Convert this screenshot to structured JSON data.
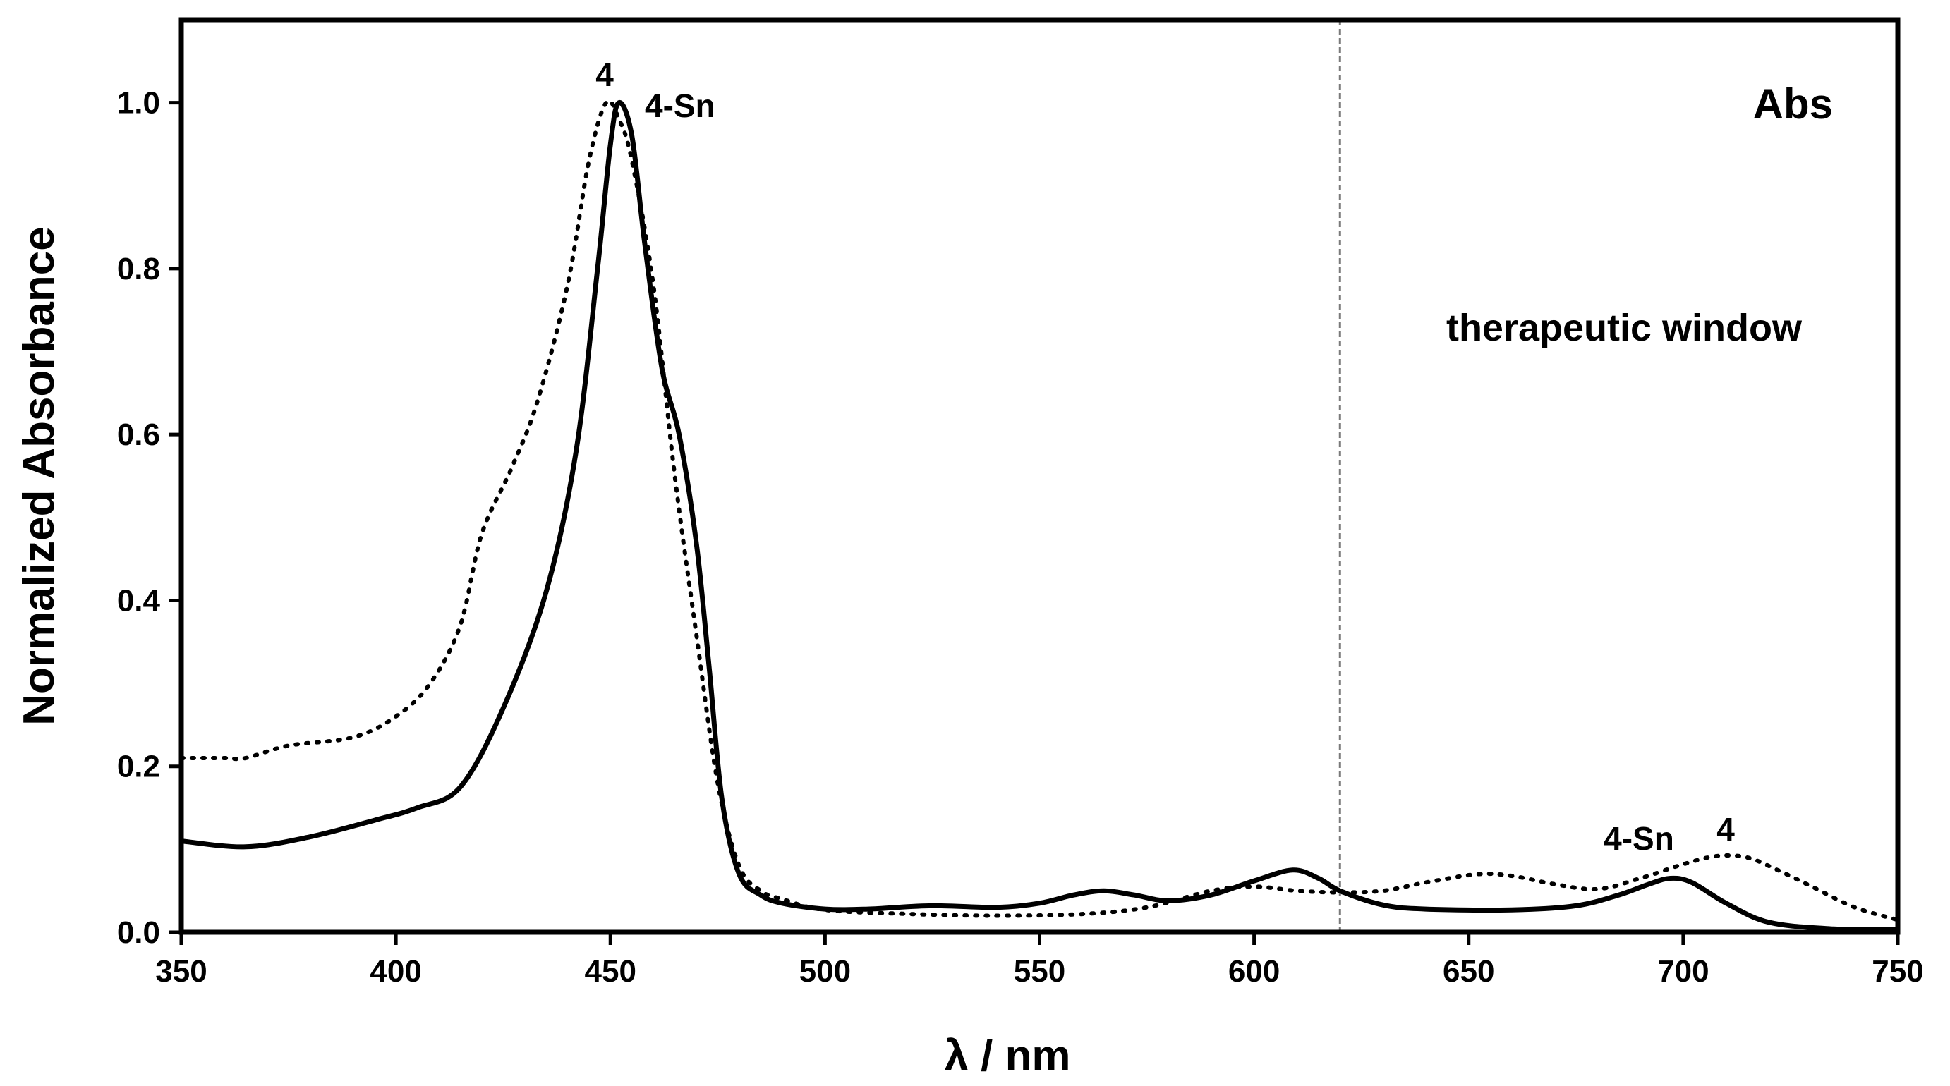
{
  "chart_data": {
    "type": "line",
    "title": "",
    "xlabel": "λ / nm",
    "ylabel": "Normalized Absorbance",
    "xlim": [
      350,
      750
    ],
    "ylim": [
      0,
      1.1
    ],
    "x_ticks": [
      350,
      400,
      450,
      500,
      550,
      600,
      650,
      700,
      750
    ],
    "x_tick_labels": [
      "350",
      "400",
      "450",
      "500",
      "550",
      "600",
      "650",
      "700",
      "750"
    ],
    "y_ticks": [
      0,
      0.2,
      0.4,
      0.6,
      0.8,
      1.0
    ],
    "y_tick_labels": [
      "0.0",
      "0.2",
      "0.4",
      "0.6",
      "0.8",
      "1.0"
    ],
    "grid": false,
    "vline_x": 620,
    "series": [
      {
        "name": "4-Sn",
        "line_style": "solid",
        "color": "#000000",
        "x": [
          350,
          365,
          380,
          395,
          405,
          415,
          425,
          435,
          442,
          447,
          450,
          452,
          455,
          458,
          462,
          466,
          470,
          473,
          476,
          480,
          485,
          490,
          500,
          510,
          525,
          540,
          550,
          558,
          565,
          572,
          580,
          590,
          600,
          609,
          615,
          620,
          630,
          640,
          660,
          675,
          685,
          692,
          697,
          702,
          710,
          720,
          735,
          750
        ],
        "y": [
          0.11,
          0.103,
          0.115,
          0.135,
          0.15,
          0.175,
          0.27,
          0.41,
          0.58,
          0.8,
          0.95,
          1.0,
          0.96,
          0.83,
          0.68,
          0.6,
          0.47,
          0.32,
          0.16,
          0.07,
          0.045,
          0.035,
          0.028,
          0.028,
          0.032,
          0.03,
          0.035,
          0.045,
          0.05,
          0.045,
          0.038,
          0.045,
          0.062,
          0.075,
          0.065,
          0.05,
          0.033,
          0.028,
          0.027,
          0.032,
          0.045,
          0.058,
          0.065,
          0.06,
          0.035,
          0.012,
          0.004,
          0.003
        ]
      },
      {
        "name": "4",
        "line_style": "dotted",
        "color": "#000000",
        "x": [
          350,
          360,
          365,
          375,
          390,
          400,
          408,
          415,
          420,
          427,
          433,
          440,
          445,
          449,
          452,
          455,
          460,
          465,
          470,
          475,
          480,
          485,
          490,
          500,
          520,
          540,
          560,
          575,
          590,
          600,
          610,
          620,
          630,
          640,
          652,
          660,
          670,
          680,
          690,
          700,
          708,
          715,
          722,
          730,
          740,
          750
        ],
        "y": [
          0.21,
          0.21,
          0.21,
          0.225,
          0.235,
          0.26,
          0.3,
          0.37,
          0.48,
          0.56,
          0.64,
          0.78,
          0.93,
          1.0,
          0.98,
          0.93,
          0.78,
          0.55,
          0.36,
          0.18,
          0.08,
          0.05,
          0.04,
          0.027,
          0.022,
          0.02,
          0.022,
          0.03,
          0.05,
          0.055,
          0.05,
          0.048,
          0.05,
          0.06,
          0.07,
          0.068,
          0.058,
          0.052,
          0.065,
          0.082,
          0.092,
          0.09,
          0.075,
          0.055,
          0.03,
          0.015
        ]
      }
    ],
    "annotations": {
      "panel_label": "Abs",
      "region_label": "therapeutic window",
      "peak_label_4": "4",
      "peak_label_4sn": "4-Sn",
      "q_label_4sn": "4-Sn",
      "q_label_4": "4"
    }
  }
}
